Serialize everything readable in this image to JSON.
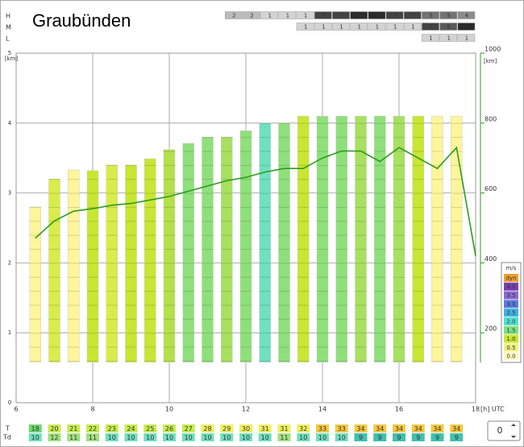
{
  "title": "Graubünden",
  "cloud_rows": [
    {
      "label": "H",
      "values": [
        "2",
        "2",
        "1",
        "1",
        "1",
        "7",
        "7",
        "8",
        "8",
        "7",
        "7",
        "5",
        "5",
        "4"
      ]
    },
    {
      "label": "M",
      "values": [
        "1",
        "1",
        "1",
        "1",
        "1",
        "1",
        "1",
        "7",
        "6",
        "8"
      ]
    },
    {
      "label": "L",
      "values": [
        "1",
        "1",
        "1"
      ]
    }
  ],
  "chart_data": {
    "type": "bar",
    "y_label": "[km]",
    "y2_label": "[km]",
    "x_label": "[h] UTC",
    "xlim": [
      6,
      18
    ],
    "xticks": [
      6,
      8,
      10,
      12,
      14,
      16,
      18
    ],
    "ylim": [
      0,
      5
    ],
    "yticks": [
      0,
      1,
      2,
      3,
      4,
      5
    ],
    "y2lim": [
      0,
      1000
    ],
    "y2ticks": [
      200,
      400,
      600,
      800,
      1000
    ],
    "grid": true,
    "x": [
      6.5,
      7,
      7.5,
      8,
      8.5,
      9,
      9.5,
      10,
      10.5,
      11,
      11.5,
      12,
      12.5,
      13,
      13.5,
      14,
      14.5,
      15,
      15.5,
      16,
      16.5,
      17,
      17.5
    ],
    "base": 0.58,
    "values": [
      2.8,
      3.2,
      3.33,
      3.32,
      3.4,
      3.4,
      3.49,
      3.62,
      3.71,
      3.8,
      3.8,
      3.89,
      4.0,
      4.0,
      4.1,
      4.1,
      4.1,
      4.1,
      4.1,
      4.1,
      4.1,
      4.1,
      4.1
    ],
    "colors": [
      "#fff59a",
      "#d9ec4a",
      "#fff59a",
      "#c8e632",
      "#d9ec4a",
      "#c8e632",
      "#c8e632",
      "#b4e04a",
      "#8ee07a",
      "#8ee07a",
      "#a8e060",
      "#8ee07a",
      "#70e0c0",
      "#8ee07a",
      "#c8e632",
      "#8ee07a",
      "#8ee07a",
      "#a8e060",
      "#8ee07a",
      "#a8e060",
      "#c8e632",
      "#fff59a",
      "#fff59a"
    ],
    "line": {
      "color": "#2e9b1e",
      "axis": "y2",
      "x": [
        6.5,
        7,
        7.5,
        8,
        8.5,
        9,
        9.5,
        10,
        10.5,
        11,
        11.5,
        12,
        12.5,
        13,
        13.5,
        14,
        14.5,
        15,
        15.5,
        16,
        16.5,
        17,
        17.5,
        18
      ],
      "values": [
        471,
        520,
        548,
        555,
        565,
        570,
        580,
        590,
        605,
        620,
        635,
        645,
        660,
        670,
        670,
        700,
        720,
        720,
        690,
        730,
        700,
        670,
        730,
        420
      ]
    },
    "legend": {
      "title": "m/s",
      "entries": [
        {
          "label": "dyn",
          "color": "#f0a030"
        },
        {
          "label": "4.0",
          "color": "#7a3fb0"
        },
        {
          "label": "3.5",
          "color": "#8a6ad0"
        },
        {
          "label": "3.0",
          "color": "#5a7ae0"
        },
        {
          "label": "2.5",
          "color": "#40b0e0"
        },
        {
          "label": "2.0",
          "color": "#50e0d0"
        },
        {
          "label": "1.5",
          "color": "#80e080"
        },
        {
          "label": "1.0",
          "color": "#c8e632"
        },
        {
          "label": "0.5",
          "color": "#f0f080"
        },
        {
          "label": "0.0",
          "color": "#fff8c0"
        }
      ]
    }
  },
  "temperature_rows": [
    {
      "label": "T",
      "values": [
        18,
        20,
        21,
        22,
        23,
        24,
        25,
        26,
        27,
        28,
        29,
        30,
        31,
        31,
        32,
        33,
        33,
        34,
        34,
        34,
        34,
        34,
        34
      ]
    },
    {
      "label": "Td",
      "values": [
        10,
        12,
        11,
        11,
        10,
        10,
        10,
        10,
        10,
        10,
        10,
        10,
        10,
        11,
        10,
        10,
        10,
        9,
        9,
        9,
        9,
        9,
        9
      ]
    }
  ],
  "spinner_value": "0"
}
